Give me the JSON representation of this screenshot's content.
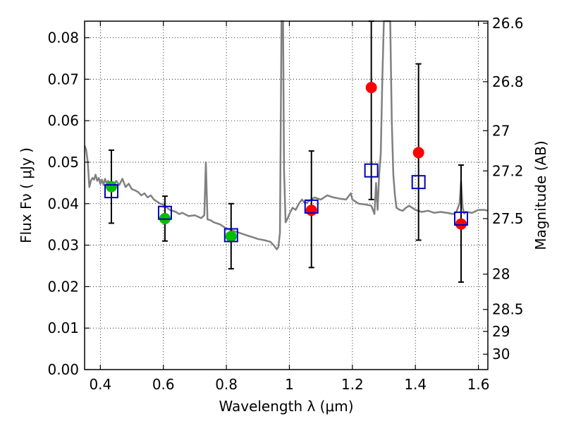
{
  "chart_data": {
    "type": "scatter",
    "title": "",
    "xlabel": "Wavelength  λ (μm)",
    "ylabel": "Flux  Fν  ( μJy )",
    "ylabel_right": "Magnitude (AB)",
    "xlim": [
      0.35,
      1.63
    ],
    "ylim": [
      0.0,
      0.084
    ],
    "grid": true,
    "x_ticks": [
      0.4,
      0.6,
      0.8,
      1.0,
      1.2,
      1.4,
      1.6
    ],
    "x_tick_labels": [
      "0.4",
      "0.6",
      "0.8",
      "1",
      "1.2",
      "1.4",
      "1.6"
    ],
    "y_ticks": [
      0.0,
      0.01,
      0.02,
      0.03,
      0.04,
      0.05,
      0.06,
      0.07,
      0.08
    ],
    "y_tick_labels": [
      "0.00",
      "0.01",
      "0.02",
      "0.03",
      "0.04",
      "0.05",
      "0.06",
      "0.07",
      "0.08"
    ],
    "right_ticks": [
      {
        "label": "26.6",
        "flux": 0.0835
      },
      {
        "label": "26.8",
        "flux": 0.0694
      },
      {
        "label": "27",
        "flux": 0.0576
      },
      {
        "label": "27.2",
        "flux": 0.0479
      },
      {
        "label": "27.5",
        "flux": 0.0364
      },
      {
        "label": "28",
        "flux": 0.023
      },
      {
        "label": "28.5",
        "flux": 0.0145
      },
      {
        "label": "29",
        "flux": 0.0092
      },
      {
        "label": "30",
        "flux": 0.0037
      }
    ],
    "series": [
      {
        "marker": "circle",
        "color": "#00bf00",
        "x": [
          0.435,
          0.605,
          0.815
        ],
        "y": [
          0.0441,
          0.0364,
          0.0321
        ]
      },
      {
        "marker": "circle",
        "color": "#ff0000",
        "x": [
          1.07,
          1.26,
          1.41,
          1.545
        ],
        "y": [
          0.0384,
          0.068,
          0.0523,
          0.0351
        ]
      },
      {
        "marker": "open-square",
        "color": "#0000bf",
        "x": [
          0.435,
          0.605,
          0.815,
          1.07,
          1.26,
          1.41,
          1.545
        ],
        "y": [
          0.043,
          0.0378,
          0.0324,
          0.0393,
          0.048,
          0.0452,
          0.0364
        ]
      }
    ],
    "error_bars": [
      {
        "x": 0.435,
        "low": 0.0353,
        "high": 0.0529
      },
      {
        "x": 0.605,
        "low": 0.031,
        "high": 0.0418
      },
      {
        "x": 0.815,
        "low": 0.0243,
        "high": 0.04
      },
      {
        "x": 1.07,
        "low": 0.0246,
        "high": 0.0527
      },
      {
        "x": 1.26,
        "low": 0.041,
        "high": 0.084
      },
      {
        "x": 1.41,
        "low": 0.0312,
        "high": 0.0737
      },
      {
        "x": 1.545,
        "low": 0.0211,
        "high": 0.0493
      }
    ],
    "template_spectrum": {
      "color": "#808080",
      "x": [
        0.35,
        0.355,
        0.36,
        0.365,
        0.37,
        0.375,
        0.38,
        0.385,
        0.39,
        0.395,
        0.4,
        0.405,
        0.41,
        0.415,
        0.42,
        0.425,
        0.43,
        0.44,
        0.45,
        0.46,
        0.47,
        0.48,
        0.49,
        0.5,
        0.51,
        0.52,
        0.53,
        0.54,
        0.55,
        0.56,
        0.57,
        0.58,
        0.59,
        0.6,
        0.62,
        0.64,
        0.65,
        0.66,
        0.68,
        0.7,
        0.72,
        0.73,
        0.735,
        0.74,
        0.75,
        0.76,
        0.78,
        0.8,
        0.82,
        0.84,
        0.86,
        0.88,
        0.9,
        0.92,
        0.94,
        0.95,
        0.96,
        0.965,
        0.97,
        0.975,
        0.978,
        0.98,
        0.983,
        0.988,
        0.995,
        1.0,
        1.01,
        1.02,
        1.03,
        1.04,
        1.05,
        1.06,
        1.08,
        1.1,
        1.12,
        1.14,
        1.16,
        1.18,
        1.19,
        1.195,
        1.2,
        1.22,
        1.24,
        1.26,
        1.265,
        1.27,
        1.275,
        1.28,
        1.285,
        1.29,
        1.295,
        1.3,
        1.305,
        1.31,
        1.315,
        1.32,
        1.325,
        1.33,
        1.335,
        1.34,
        1.35,
        1.36,
        1.37,
        1.38,
        1.4,
        1.42,
        1.44,
        1.46,
        1.48,
        1.5,
        1.52,
        1.53,
        1.54,
        1.545,
        1.55,
        1.555,
        1.56,
        1.58,
        1.6,
        1.62,
        1.63
      ],
      "y": [
        0.054,
        0.053,
        0.05,
        0.044,
        0.0455,
        0.0462,
        0.0458,
        0.047,
        0.0455,
        0.0462,
        0.0448,
        0.0458,
        0.0445,
        0.046,
        0.0448,
        0.0455,
        0.045,
        0.044,
        0.0455,
        0.0445,
        0.046,
        0.044,
        0.0448,
        0.0435,
        0.0432,
        0.0428,
        0.042,
        0.0425,
        0.0415,
        0.042,
        0.041,
        0.0405,
        0.04,
        0.0398,
        0.0385,
        0.038,
        0.0375,
        0.0378,
        0.037,
        0.0372,
        0.0365,
        0.0372,
        0.05,
        0.0362,
        0.036,
        0.0355,
        0.035,
        0.034,
        0.0335,
        0.033,
        0.0325,
        0.032,
        0.0315,
        0.0312,
        0.0308,
        0.03,
        0.029,
        0.0295,
        0.033,
        0.085,
        0.085,
        0.085,
        0.048,
        0.0355,
        0.0365,
        0.0375,
        0.039,
        0.0385,
        0.04,
        0.041,
        0.04,
        0.0405,
        0.0415,
        0.041,
        0.042,
        0.0415,
        0.0412,
        0.041,
        0.042,
        0.0425,
        0.041,
        0.04,
        0.0398,
        0.0395,
        0.0385,
        0.0375,
        0.045,
        0.0385,
        0.047,
        0.052,
        0.07,
        0.085,
        0.085,
        0.085,
        0.085,
        0.085,
        0.06,
        0.047,
        0.042,
        0.039,
        0.0385,
        0.0383,
        0.039,
        0.0395,
        0.0385,
        0.038,
        0.0383,
        0.0378,
        0.038,
        0.0378,
        0.0375,
        0.038,
        0.04,
        0.0455,
        0.039,
        0.0376,
        0.038,
        0.0378,
        0.0385,
        0.0385,
        0.0383
      ]
    }
  }
}
